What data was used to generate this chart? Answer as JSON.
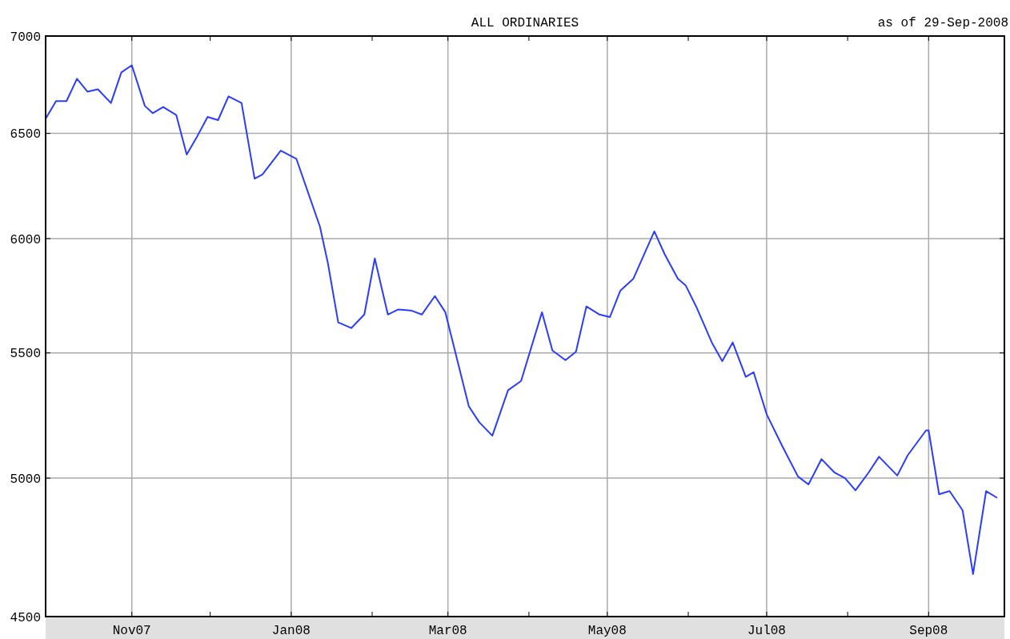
{
  "chart_data": {
    "type": "line",
    "title": "ALL ORDINARIES",
    "annotations": [
      "as of 29-Sep-2008"
    ],
    "x": [
      "2007-09-29",
      "2007-10-03",
      "2007-10-07",
      "2007-10-11",
      "2007-10-15",
      "2007-10-19",
      "2007-10-24",
      "2007-10-28",
      "2007-11-01",
      "2007-11-06",
      "2007-11-09",
      "2007-11-13",
      "2007-11-18",
      "2007-11-22",
      "2007-11-26",
      "2007-11-30",
      "2007-12-04",
      "2007-12-08",
      "2007-12-13",
      "2007-12-18",
      "2007-12-21",
      "2007-12-28",
      "2008-01-03",
      "2008-01-12",
      "2008-01-15",
      "2008-01-19",
      "2008-01-24",
      "2008-01-29",
      "2008-02-02",
      "2008-02-07",
      "2008-02-11",
      "2008-02-16",
      "2008-02-20",
      "2008-02-25",
      "2008-02-29",
      "2008-03-09",
      "2008-03-13",
      "2008-03-18",
      "2008-03-24",
      "2008-03-29",
      "2008-04-06",
      "2008-04-10",
      "2008-04-15",
      "2008-04-19",
      "2008-04-23",
      "2008-04-28",
      "2008-05-02",
      "2008-05-06",
      "2008-05-11",
      "2008-05-19",
      "2008-05-23",
      "2008-05-28",
      "2008-05-31",
      "2008-06-04",
      "2008-06-10",
      "2008-06-14",
      "2008-06-18",
      "2008-06-23",
      "2008-06-26",
      "2008-07-01",
      "2008-07-07",
      "2008-07-13",
      "2008-07-17",
      "2008-07-22",
      "2008-07-27",
      "2008-07-31",
      "2008-08-04",
      "2008-08-09",
      "2008-08-13",
      "2008-08-20",
      "2008-08-24",
      "2008-08-31",
      "2008-09-01",
      "2008-09-05",
      "2008-09-09",
      "2008-09-14",
      "2008-09-18",
      "2008-09-23",
      "2008-09-27"
    ],
    "series": [
      {
        "color": "#2a3cff",
        "values": [
          6573,
          6662,
          6662,
          6776,
          6710,
          6722,
          6652,
          6809,
          6846,
          6637,
          6601,
          6632,
          6592,
          6396,
          6485,
          6582,
          6566,
          6686,
          6652,
          6280,
          6300,
          6415,
          6375,
          6055,
          5892,
          5629,
          5605,
          5663,
          5910,
          5663,
          5685,
          5680,
          5663,
          5743,
          5673,
          5281,
          5217,
          5164,
          5346,
          5384,
          5673,
          5510,
          5470,
          5505,
          5698,
          5663,
          5652,
          5767,
          5820,
          6033,
          5928,
          5820,
          5790,
          5698,
          5544,
          5466,
          5544,
          5401,
          5420,
          5249,
          5123,
          5006,
          4976,
          5073,
          5021,
          5000,
          4954,
          5021,
          5082,
          5010,
          5088,
          5185,
          5185,
          4939,
          4951,
          4879,
          4648,
          4951,
          4927
        ]
      }
    ],
    "xlim": [
      "2007-09-29",
      "2008-09-30"
    ],
    "xticks": [
      {
        "value": "2007-11-01",
        "label": "Nov07"
      },
      {
        "value": "2007-12-01",
        "label": null
      },
      {
        "value": "2008-01-01",
        "label": "Jan08"
      },
      {
        "value": "2008-02-01",
        "label": null
      },
      {
        "value": "2008-03-01",
        "label": "Mar08"
      },
      {
        "value": "2008-04-01",
        "label": null
      },
      {
        "value": "2008-05-01",
        "label": "May08"
      },
      {
        "value": "2008-06-01",
        "label": null
      },
      {
        "value": "2008-07-01",
        "label": "Jul08"
      },
      {
        "value": "2008-08-01",
        "label": null
      },
      {
        "value": "2008-09-01",
        "label": "Sep08"
      }
    ],
    "ylim": [
      4500,
      7000
    ],
    "yticks": [
      4500,
      5000,
      5500,
      6000,
      6500,
      7000
    ],
    "log": true,
    "grid": true,
    "marker": "none",
    "line_style": "solid"
  }
}
